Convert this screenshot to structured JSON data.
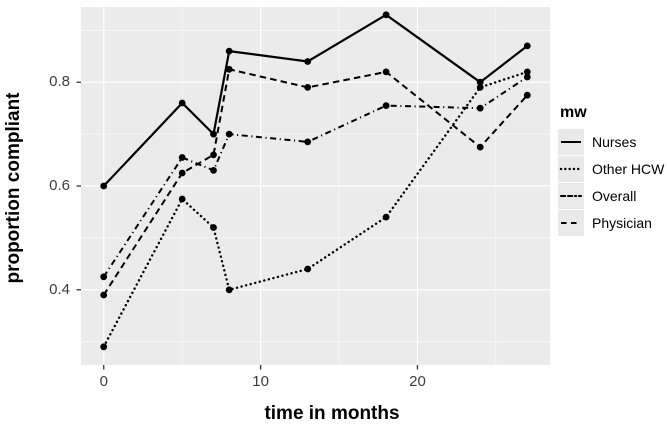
{
  "figure": {
    "ylabel": "proportion compliant",
    "xlabel": "time in months",
    "legend_title": "mw"
  },
  "chart_data": {
    "type": "line",
    "title": "",
    "xlabel": "time in months",
    "ylabel": "proportion compliant",
    "x": [
      0,
      5,
      7,
      8,
      13,
      18,
      24,
      27
    ],
    "series": [
      {
        "name": "Nurses",
        "linetype": "solid",
        "values": [
          0.6,
          0.76,
          0.7,
          0.86,
          0.84,
          0.93,
          0.8,
          0.87
        ]
      },
      {
        "name": "Other HCW",
        "linetype": "dotted",
        "values": [
          0.29,
          0.575,
          0.52,
          0.4,
          0.44,
          0.54,
          0.79,
          0.82
        ]
      },
      {
        "name": "Overall",
        "linetype": "dotdash",
        "values": [
          0.425,
          0.655,
          0.63,
          0.7,
          0.685,
          0.755,
          0.75,
          0.81
        ]
      },
      {
        "name": "Physician",
        "linetype": "longdash",
        "values": [
          0.39,
          0.625,
          0.66,
          0.825,
          0.79,
          0.82,
          0.675,
          0.775
        ]
      }
    ],
    "xlim": [
      -1.45,
      28.45
    ],
    "ylim": [
      0.255,
      0.945
    ],
    "x_ticks": [
      {
        "value": 0,
        "label": "0"
      },
      {
        "value": 10,
        "label": "10"
      },
      {
        "value": 20,
        "label": "20"
      }
    ],
    "y_ticks": [
      {
        "value": 0.4,
        "label": "0.4"
      },
      {
        "value": 0.6,
        "label": "0.6"
      },
      {
        "value": 0.8,
        "label": "0.8"
      }
    ],
    "x_minor": [
      5,
      15,
      25
    ],
    "y_minor": [
      0.3,
      0.5,
      0.7,
      0.9
    ],
    "grid": true,
    "marker": "point",
    "legend": {
      "title": "mw",
      "position": "right"
    },
    "colors": {
      "line": "#000000",
      "marker": "#000000",
      "panel_bg": "#ebebeb",
      "grid_major": "#ffffff",
      "grid_minor": "#f5f5f5",
      "tick_mark": "#333333",
      "tick_label": "#3d3d3d",
      "legend_key_bg": "#e9e9e9",
      "text": "#000000"
    }
  }
}
